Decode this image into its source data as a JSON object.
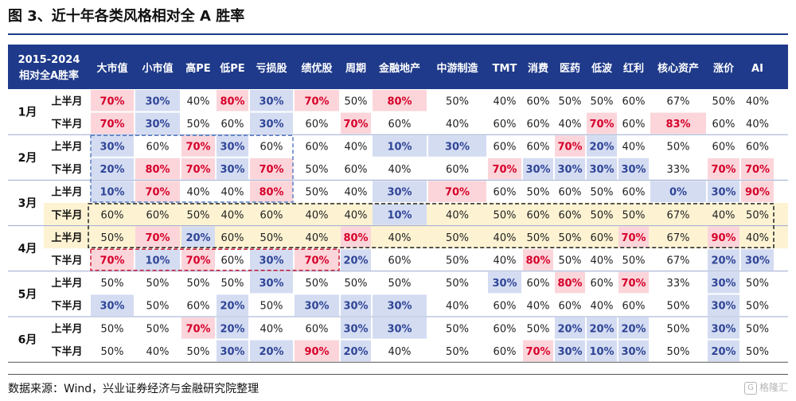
{
  "title": "图 3、近十年各类风格相对全 A 胜率",
  "source": "数据来源：Wind，兴业证券经济与金融研究院整理",
  "watermark": "格隆汇",
  "colors": {
    "header_bg": "#1f3a8a",
    "high": "#fbd5da",
    "high_text": "#d6002a",
    "low": "#d4dcf2",
    "low_text": "#2f4596",
    "highlight_yellow": "#fdf3d3",
    "box_blue": "#5b7fc4",
    "box_yellow": "#222222",
    "box_red": "#d0213a"
  },
  "chart_data": {
    "type": "table",
    "corner_label": [
      "2015-2024",
      "相对全A胜率"
    ],
    "columns": [
      "大市值",
      "小市值",
      "高PE",
      "低PE",
      "亏损股",
      "绩优股",
      "周期",
      "金融地产",
      "中游制造",
      "TMT",
      "消费",
      "医药",
      "低波",
      "红利",
      "核心资产",
      "涨价",
      "AI"
    ],
    "months": [
      {
        "label": "1月",
        "rows": [
          {
            "half": "上半月",
            "values": [
              "70%",
              "30%",
              "40%",
              "80%",
              "30%",
              "70%",
              "50%",
              "80%",
              "50%",
              "40%",
              "60%",
              "50%",
              "50%",
              "60%",
              "67%",
              "50%",
              "40%"
            ]
          },
          {
            "half": "下半月",
            "values": [
              "70%",
              "30%",
              "50%",
              "60%",
              "30%",
              "60%",
              "70%",
              "60%",
              "40%",
              "60%",
              "60%",
              "40%",
              "70%",
              "60%",
              "83%",
              "60%",
              "40%"
            ]
          }
        ]
      },
      {
        "label": "2月",
        "rows": [
          {
            "half": "上半月",
            "values": [
              "30%",
              "60%",
              "70%",
              "30%",
              "60%",
              "60%",
              "40%",
              "10%",
              "30%",
              "60%",
              "60%",
              "70%",
              "20%",
              "40%",
              "50%",
              "60%",
              "60%"
            ]
          },
          {
            "half": "下半月",
            "values": [
              "20%",
              "80%",
              "70%",
              "30%",
              "70%",
              "50%",
              "60%",
              "40%",
              "60%",
              "70%",
              "30%",
              "30%",
              "30%",
              "30%",
              "33%",
              "70%",
              "70%"
            ]
          }
        ]
      },
      {
        "label": "3月",
        "rows": [
          {
            "half": "上半月",
            "values": [
              "10%",
              "70%",
              "40%",
              "40%",
              "80%",
              "50%",
              "40%",
              "30%",
              "70%",
              "60%",
              "50%",
              "60%",
              "50%",
              "60%",
              "0%",
              "30%",
              "90%"
            ]
          },
          {
            "half": "下半月",
            "values": [
              "60%",
              "60%",
              "50%",
              "40%",
              "60%",
              "40%",
              "40%",
              "10%",
              "40%",
              "50%",
              "60%",
              "60%",
              "50%",
              "50%",
              "67%",
              "40%",
              "50%"
            ]
          }
        ]
      },
      {
        "label": "4月",
        "rows": [
          {
            "half": "上半月",
            "values": [
              "50%",
              "70%",
              "20%",
              "60%",
              "50%",
              "40%",
              "80%",
              "40%",
              "50%",
              "40%",
              "50%",
              "50%",
              "60%",
              "70%",
              "67%",
              "90%",
              "40%"
            ]
          },
          {
            "half": "下半月",
            "values": [
              "70%",
              "10%",
              "70%",
              "60%",
              "30%",
              "70%",
              "20%",
              "60%",
              "50%",
              "40%",
              "80%",
              "50%",
              "40%",
              "50%",
              "67%",
              "20%",
              "30%"
            ]
          }
        ]
      },
      {
        "label": "5月",
        "rows": [
          {
            "half": "上半月",
            "values": [
              "50%",
              "50%",
              "50%",
              "50%",
              "30%",
              "50%",
              "50%",
              "50%",
              "50%",
              "30%",
              "60%",
              "80%",
              "60%",
              "70%",
              "33%",
              "30%",
              "50%"
            ]
          },
          {
            "half": "下半月",
            "values": [
              "30%",
              "50%",
              "60%",
              "20%",
              "50%",
              "30%",
              "30%",
              "30%",
              "40%",
              "60%",
              "40%",
              "60%",
              "40%",
              "60%",
              "50%",
              "30%",
              "50%"
            ]
          }
        ]
      },
      {
        "label": "6月",
        "rows": [
          {
            "half": "上半月",
            "values": [
              "50%",
              "50%",
              "70%",
              "20%",
              "40%",
              "60%",
              "30%",
              "30%",
              "50%",
              "60%",
              "50%",
              "20%",
              "20%",
              "20%",
              "50%",
              "30%",
              "50%"
            ]
          },
          {
            "half": "下半月",
            "values": [
              "50%",
              "40%",
              "50%",
              "30%",
              "20%",
              "90%",
              "20%",
              "40%",
              "50%",
              "60%",
              "70%",
              "30%",
              "10%",
              "30%",
              "50%",
              "20%",
              "50%"
            ]
          }
        ]
      }
    ]
  }
}
